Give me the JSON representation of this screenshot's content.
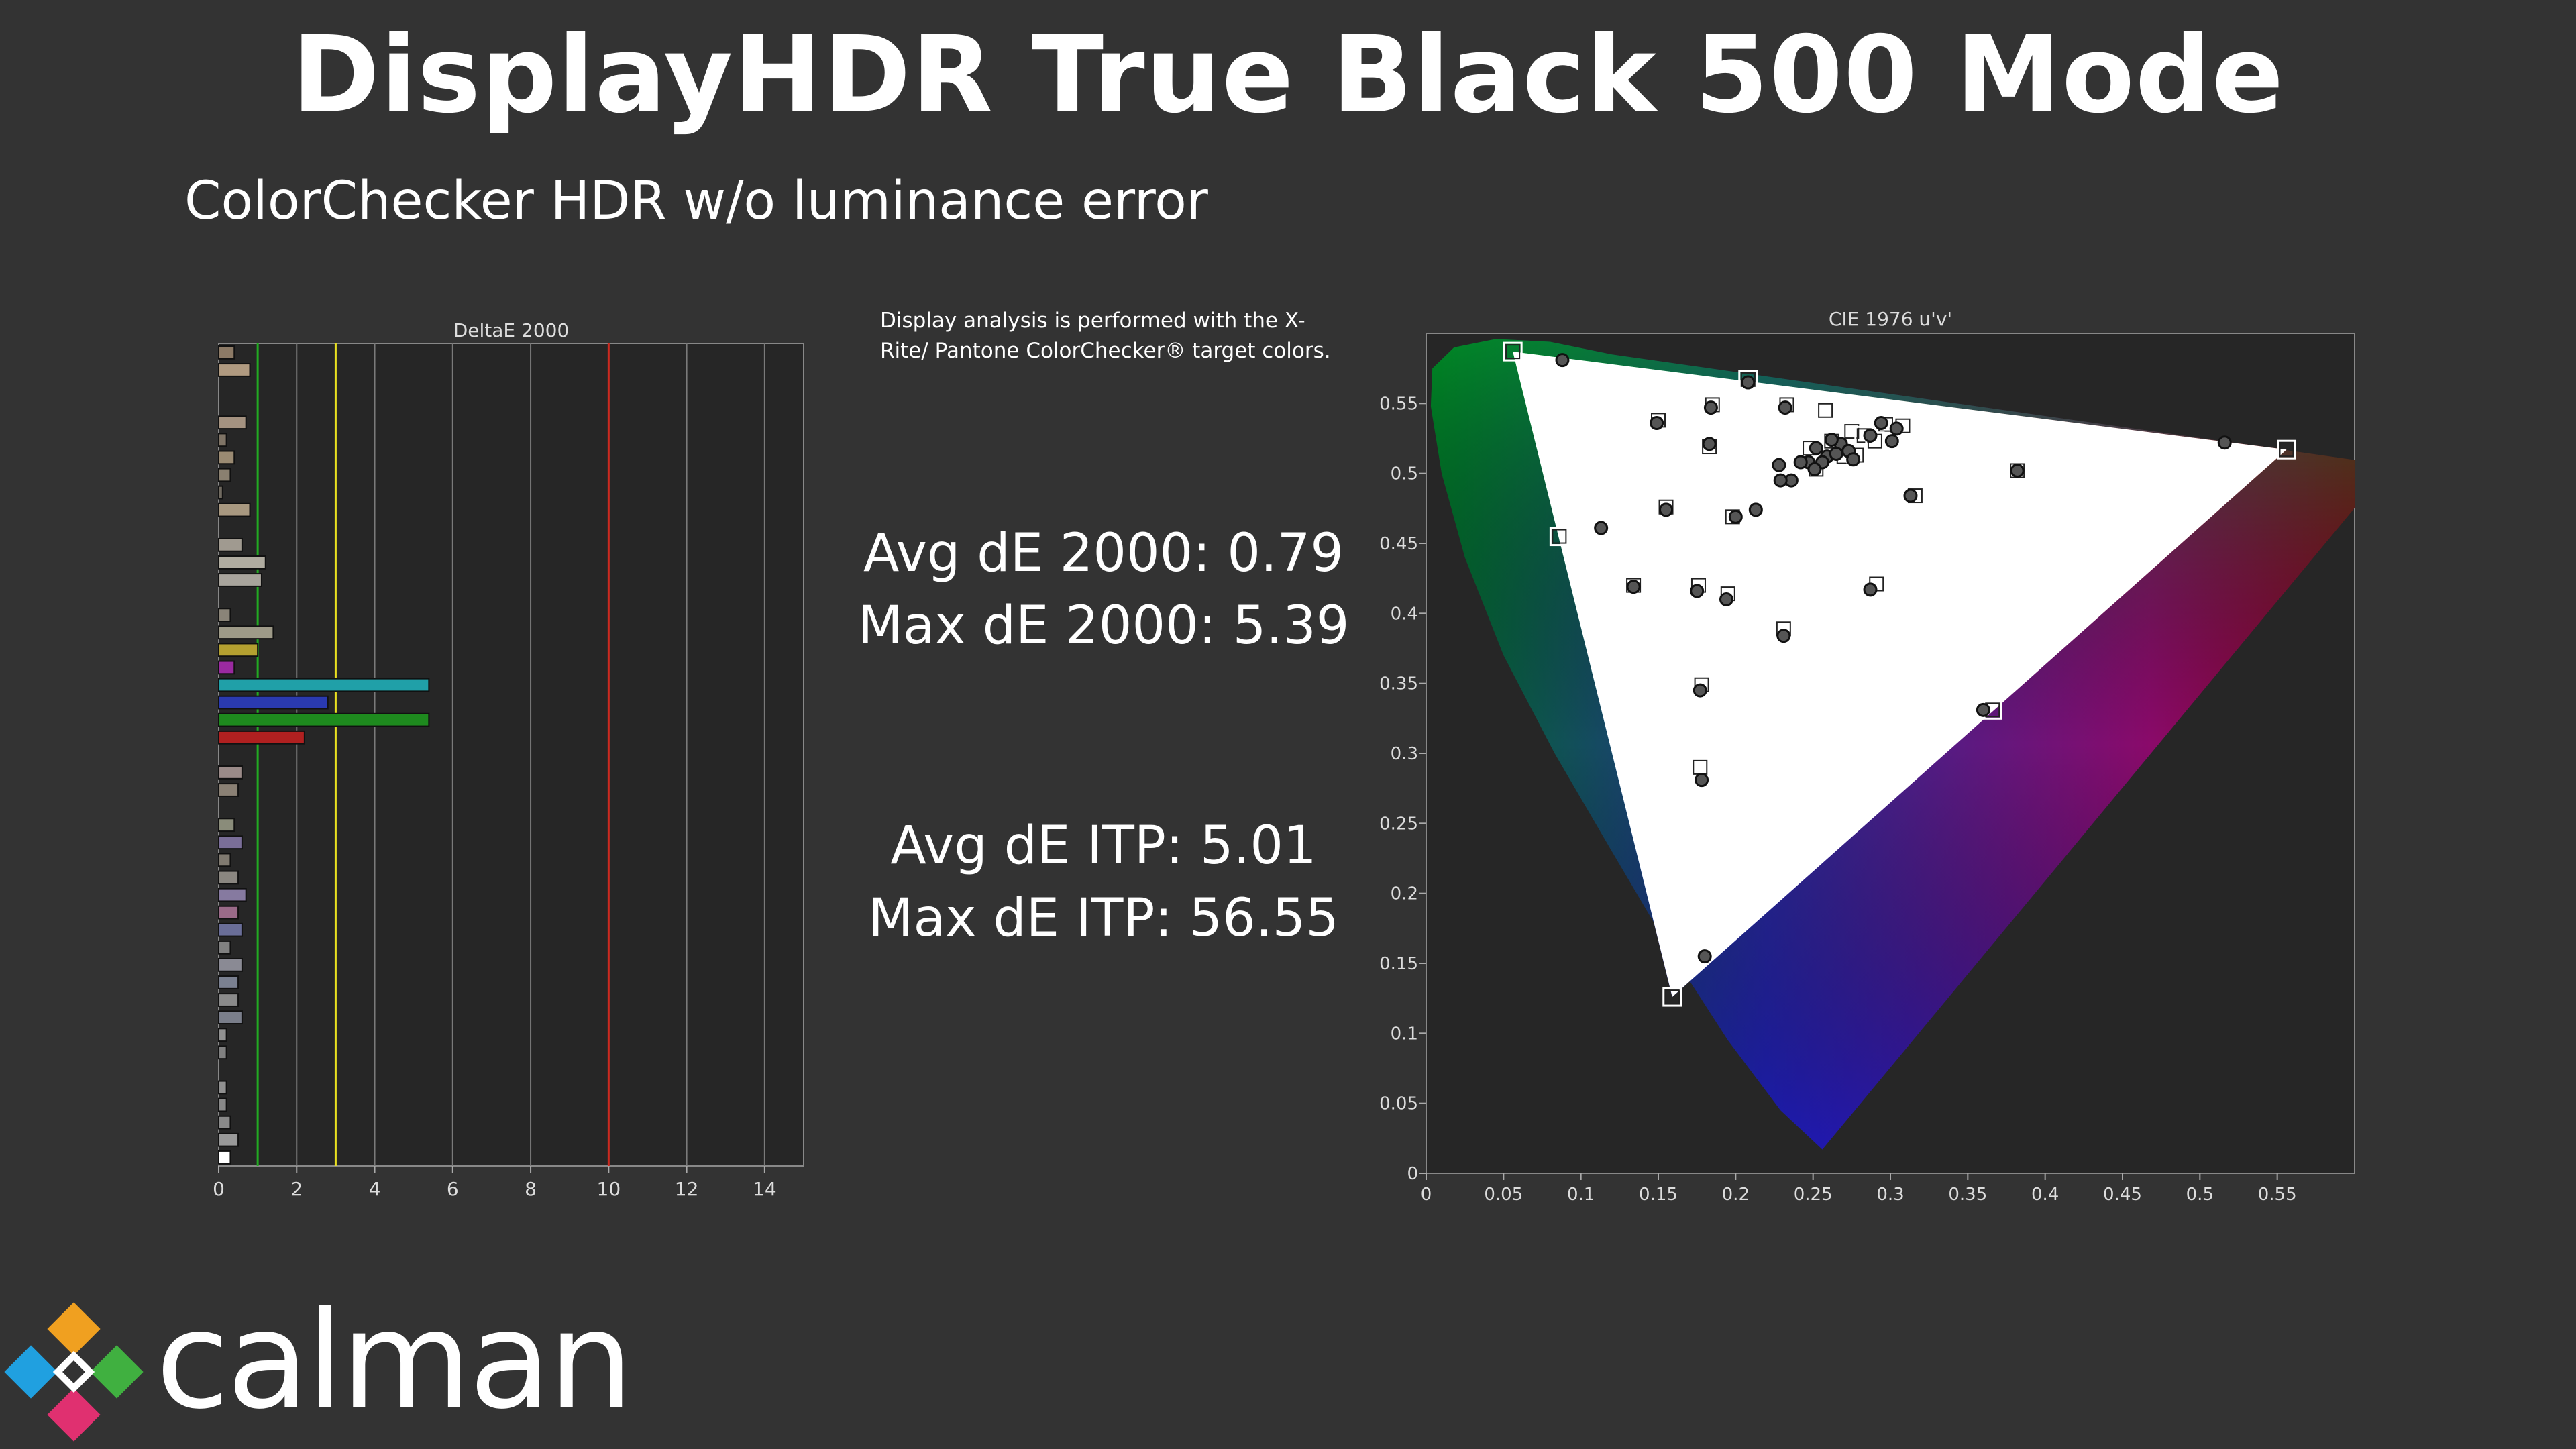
{
  "title": "DisplayHDR True Black 500 Mode",
  "subtitle": "ColorChecker HDR w/o luminance error",
  "note": "Display analysis is performed with the X-Rite/ Pantone ColorChecker® target colors.",
  "stats": {
    "avg_de2000": "Avg dE 2000: 0.79",
    "max_de2000": "Max dE 2000: 5.39",
    "avg_itp": "Avg dE ITP: 5.01",
    "max_itp": "Max dE ITP: 56.55"
  },
  "logo_text": "calman",
  "colors": {
    "background": "#333333",
    "plot_bg": "#262626",
    "threshold_green": "#22aa22",
    "threshold_yellow": "#e8e020",
    "threshold_red": "#cc2a20"
  },
  "chart_data": [
    {
      "type": "bar",
      "orientation": "horizontal",
      "title": "DeltaE 2000",
      "xlim": [
        0,
        15
      ],
      "xticks": [
        0,
        2,
        4,
        6,
        8,
        10,
        12,
        14
      ],
      "thresholds": [
        {
          "value": 1,
          "color": "#22aa22"
        },
        {
          "value": 3,
          "color": "#e8e020"
        },
        {
          "value": 10,
          "color": "#cc2a20"
        }
      ],
      "bars": [
        {
          "value": 0.4,
          "color": "#8c7a66"
        },
        {
          "value": 0.8,
          "color": "#b09a80"
        },
        {
          "value": 0,
          "color": "#888888"
        },
        {
          "value": 0,
          "color": "#888888"
        },
        {
          "value": 0.7,
          "color": "#a49280"
        },
        {
          "value": 0.2,
          "color": "#7f7466"
        },
        {
          "value": 0.4,
          "color": "#9a8a72"
        },
        {
          "value": 0.3,
          "color": "#8a8070"
        },
        {
          "value": 0.1,
          "color": "#706a60"
        },
        {
          "value": 0.8,
          "color": "#a89880"
        },
        {
          "value": 0,
          "color": "#888888"
        },
        {
          "value": 0.6,
          "color": "#a09a90"
        },
        {
          "value": 1.2,
          "color": "#b0aca0"
        },
        {
          "value": 1.1,
          "color": "#a8a49c"
        },
        {
          "value": 0,
          "color": "#888888"
        },
        {
          "value": 0.3,
          "color": "#8a8478"
        },
        {
          "value": 1.4,
          "color": "#9e9a88"
        },
        {
          "value": 1.0,
          "color": "#b4a030"
        },
        {
          "value": 0.4,
          "color": "#9a2aa0"
        },
        {
          "value": 5.39,
          "color": "#20a0a8"
        },
        {
          "value": 2.8,
          "color": "#2a3ab0"
        },
        {
          "value": 5.39,
          "color": "#1e8a1e"
        },
        {
          "value": 2.2,
          "color": "#b02020"
        },
        {
          "value": 0,
          "color": "#888888"
        },
        {
          "value": 0.6,
          "color": "#9a8a88"
        },
        {
          "value": 0.5,
          "color": "#8a8074"
        },
        {
          "value": 0,
          "color": "#888888"
        },
        {
          "value": 0.4,
          "color": "#8a8c7a"
        },
        {
          "value": 0.6,
          "color": "#7a6e98"
        },
        {
          "value": 0.3,
          "color": "#807a70"
        },
        {
          "value": 0.5,
          "color": "#8a8680"
        },
        {
          "value": 0.7,
          "color": "#867aa0"
        },
        {
          "value": 0.5,
          "color": "#9a6a88"
        },
        {
          "value": 0.6,
          "color": "#6a6e98"
        },
        {
          "value": 0.3,
          "color": "#808080"
        },
        {
          "value": 0.6,
          "color": "#8a8a94"
        },
        {
          "value": 0.5,
          "color": "#7a8090"
        },
        {
          "value": 0.5,
          "color": "#8a8a8a"
        },
        {
          "value": 0.6,
          "color": "#7a7e8a"
        },
        {
          "value": 0.2,
          "color": "#909090"
        },
        {
          "value": 0.2,
          "color": "#808080"
        },
        {
          "value": 0,
          "color": "#888888"
        },
        {
          "value": 0.2,
          "color": "#909090"
        },
        {
          "value": 0.2,
          "color": "#888888"
        },
        {
          "value": 0.3,
          "color": "#8a8a8a"
        },
        {
          "value": 0.5,
          "color": "#999999"
        },
        {
          "value": 0.3,
          "color": "#ffffff"
        }
      ]
    },
    {
      "type": "scatter",
      "title": "CIE 1976 u'v'",
      "xlim": [
        0,
        0.6
      ],
      "ylim": [
        0,
        0.6
      ],
      "xticks": [
        0,
        0.05,
        0.1,
        0.15,
        0.2,
        0.25,
        0.3,
        0.35,
        0.4,
        0.45,
        0.5,
        0.55
      ],
      "yticks": [
        0,
        0.05,
        0.1,
        0.15,
        0.2,
        0.25,
        0.3,
        0.35,
        0.4,
        0.45,
        0.5,
        0.55
      ],
      "gamut_triangle": {
        "red": [
          0.556,
          0.517
        ],
        "green": [
          0.056,
          0.587
        ],
        "blue": [
          0.159,
          0.126
        ]
      },
      "white_point": [
        0.198,
        0.469
      ],
      "targets": [
        [
          0.056,
          0.587
        ],
        [
          0.208,
          0.567
        ],
        [
          0.185,
          0.549
        ],
        [
          0.233,
          0.549
        ],
        [
          0.258,
          0.545
        ],
        [
          0.15,
          0.538
        ],
        [
          0.297,
          0.535
        ],
        [
          0.308,
          0.534
        ],
        [
          0.275,
          0.53
        ],
        [
          0.283,
          0.527
        ],
        [
          0.262,
          0.523
        ],
        [
          0.183,
          0.519
        ],
        [
          0.248,
          0.518
        ],
        [
          0.29,
          0.523
        ],
        [
          0.27,
          0.512
        ],
        [
          0.278,
          0.513
        ],
        [
          0.252,
          0.503
        ],
        [
          0.382,
          0.502
        ],
        [
          0.316,
          0.484
        ],
        [
          0.155,
          0.476
        ],
        [
          0.198,
          0.469
        ],
        [
          0.086,
          0.455
        ],
        [
          0.134,
          0.42
        ],
        [
          0.176,
          0.42
        ],
        [
          0.195,
          0.414
        ],
        [
          0.291,
          0.421
        ],
        [
          0.231,
          0.389
        ],
        [
          0.366,
          0.331
        ],
        [
          0.178,
          0.349
        ],
        [
          0.177,
          0.29
        ],
        [
          0.556,
          0.517
        ],
        [
          0.159,
          0.126
        ]
      ],
      "measured": [
        [
          0.088,
          0.581
        ],
        [
          0.208,
          0.565
        ],
        [
          0.184,
          0.547
        ],
        [
          0.232,
          0.547
        ],
        [
          0.149,
          0.536
        ],
        [
          0.294,
          0.536
        ],
        [
          0.304,
          0.532
        ],
        [
          0.183,
          0.521
        ],
        [
          0.268,
          0.521
        ],
        [
          0.262,
          0.524
        ],
        [
          0.252,
          0.518
        ],
        [
          0.259,
          0.512
        ],
        [
          0.265,
          0.514
        ],
        [
          0.273,
          0.516
        ],
        [
          0.287,
          0.527
        ],
        [
          0.301,
          0.523
        ],
        [
          0.247,
          0.508
        ],
        [
          0.256,
          0.508
        ],
        [
          0.276,
          0.51
        ],
        [
          0.242,
          0.508
        ],
        [
          0.228,
          0.506
        ],
        [
          0.236,
          0.495
        ],
        [
          0.229,
          0.495
        ],
        [
          0.251,
          0.503
        ],
        [
          0.382,
          0.502
        ],
        [
          0.313,
          0.484
        ],
        [
          0.155,
          0.474
        ],
        [
          0.213,
          0.474
        ],
        [
          0.2,
          0.469
        ],
        [
          0.113,
          0.461
        ],
        [
          0.134,
          0.419
        ],
        [
          0.175,
          0.416
        ],
        [
          0.194,
          0.41
        ],
        [
          0.287,
          0.417
        ],
        [
          0.231,
          0.384
        ],
        [
          0.36,
          0.331
        ],
        [
          0.177,
          0.345
        ],
        [
          0.178,
          0.281
        ],
        [
          0.18,
          0.155
        ],
        [
          0.516,
          0.522
        ]
      ]
    }
  ]
}
